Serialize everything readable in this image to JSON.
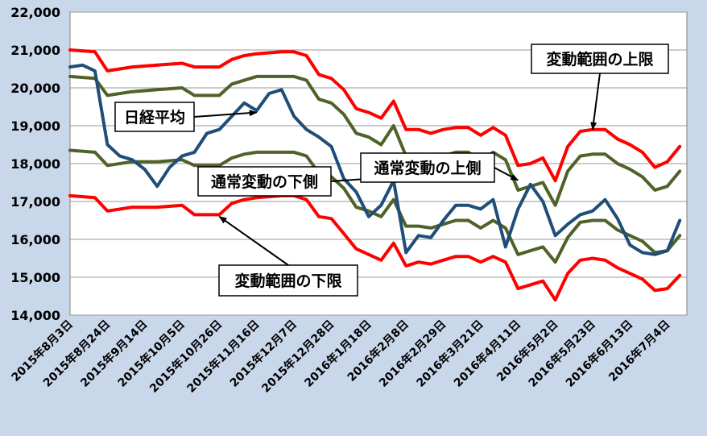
{
  "chart_data": {
    "type": "line",
    "title": "",
    "xlabel": "",
    "ylabel": "",
    "ylim": [
      14000,
      22000
    ],
    "y_ticks": [
      14000,
      15000,
      16000,
      17000,
      18000,
      19000,
      20000,
      21000,
      22000
    ],
    "y_tick_labels": [
      "14,000",
      "15,000",
      "16,000",
      "17,000",
      "18,000",
      "19,000",
      "20,000",
      "21,000",
      "22,000"
    ],
    "x_tick_labels": [
      "2015年8月3日",
      "2015年8月24日",
      "2015年9月14日",
      "2015年10月5日",
      "2015年10月26日",
      "2015年11月16日",
      "2015年12月7日",
      "2015年12月28日",
      "2016年1月18日",
      "2016年2月8日",
      "2016年2月29日",
      "2016年3月21日",
      "2016年4月11日",
      "2016年5月2日",
      "2016年5月23日",
      "2016年6月13日",
      "2016年7月4日"
    ],
    "grid": true,
    "plot_background": "#ffffff",
    "figure_background": "#c9d7ea",
    "series": [
      {
        "key": "upper_limit",
        "color": "#ff0000",
        "x": [
          "2015-08-03",
          "2015-08-17",
          "2015-08-24",
          "2015-09-07",
          "2015-09-21",
          "2015-10-05",
          "2015-10-12",
          "2015-10-26",
          "2015-11-02",
          "2015-11-09",
          "2015-11-16",
          "2015-11-30",
          "2015-12-07",
          "2015-12-14",
          "2015-12-21",
          "2015-12-28",
          "2016-01-04",
          "2016-01-11",
          "2016-01-18",
          "2016-01-25",
          "2016-02-01",
          "2016-02-08",
          "2016-02-15",
          "2016-02-22",
          "2016-02-29",
          "2016-03-07",
          "2016-03-14",
          "2016-03-21",
          "2016-03-28",
          "2016-04-04",
          "2016-04-11",
          "2016-04-18",
          "2016-04-25",
          "2016-05-02",
          "2016-05-09",
          "2016-05-16",
          "2016-05-23",
          "2016-05-30",
          "2016-06-06",
          "2016-06-13",
          "2016-06-20",
          "2016-06-27",
          "2016-07-04",
          "2016-07-11"
        ],
        "values": [
          21000,
          20950,
          20450,
          20550,
          20600,
          20650,
          20550,
          20550,
          20750,
          20850,
          20900,
          20950,
          20950,
          20850,
          20350,
          20250,
          19950,
          19450,
          19350,
          19200,
          19650,
          18900,
          18900,
          18800,
          18900,
          18950,
          18950,
          18750,
          18950,
          18750,
          17950,
          18000,
          18150,
          17550,
          18450,
          18850,
          18900,
          18900,
          18650,
          18500,
          18300,
          17900,
          18050,
          18450
        ]
      },
      {
        "key": "normal_upper",
        "color": "#4f6228",
        "x": [
          "2015-08-03",
          "2015-08-17",
          "2015-08-24",
          "2015-09-07",
          "2015-09-21",
          "2015-10-05",
          "2015-10-12",
          "2015-10-26",
          "2015-11-02",
          "2015-11-09",
          "2015-11-16",
          "2015-11-30",
          "2015-12-07",
          "2015-12-14",
          "2015-12-21",
          "2015-12-28",
          "2016-01-04",
          "2016-01-11",
          "2016-01-18",
          "2016-01-25",
          "2016-02-01",
          "2016-02-08",
          "2016-02-15",
          "2016-02-22",
          "2016-02-29",
          "2016-03-07",
          "2016-03-14",
          "2016-03-21",
          "2016-03-28",
          "2016-04-04",
          "2016-04-11",
          "2016-04-18",
          "2016-04-25",
          "2016-05-02",
          "2016-05-09",
          "2016-05-16",
          "2016-05-23",
          "2016-05-30",
          "2016-06-06",
          "2016-06-13",
          "2016-06-20",
          "2016-06-27",
          "2016-07-04",
          "2016-07-11"
        ],
        "values": [
          20300,
          20250,
          19800,
          19900,
          19950,
          20000,
          19800,
          19800,
          20100,
          20200,
          20300,
          20300,
          20300,
          20200,
          19700,
          19600,
          19300,
          18800,
          18700,
          18500,
          19000,
          18200,
          18200,
          18100,
          18200,
          18300,
          18300,
          18100,
          18300,
          18100,
          17300,
          17400,
          17500,
          16900,
          17800,
          18200,
          18250,
          18250,
          18000,
          17850,
          17650,
          17300,
          17400,
          17800
        ]
      },
      {
        "key": "normal_lower",
        "color": "#4f6228",
        "x": [
          "2015-08-03",
          "2015-08-17",
          "2015-08-24",
          "2015-09-07",
          "2015-09-21",
          "2015-10-05",
          "2015-10-12",
          "2015-10-26",
          "2015-11-02",
          "2015-11-09",
          "2015-11-16",
          "2015-11-30",
          "2015-12-07",
          "2015-12-14",
          "2015-12-21",
          "2015-12-28",
          "2016-01-04",
          "2016-01-11",
          "2016-01-18",
          "2016-01-25",
          "2016-02-01",
          "2016-02-08",
          "2016-02-15",
          "2016-02-22",
          "2016-02-29",
          "2016-03-07",
          "2016-03-14",
          "2016-03-21",
          "2016-03-28",
          "2016-04-04",
          "2016-04-11",
          "2016-04-18",
          "2016-04-25",
          "2016-05-02",
          "2016-05-09",
          "2016-05-16",
          "2016-05-23",
          "2016-05-30",
          "2016-06-06",
          "2016-06-13",
          "2016-06-20",
          "2016-06-27",
          "2016-07-04",
          "2016-07-11"
        ],
        "values": [
          18350,
          18300,
          17950,
          18050,
          18050,
          18100,
          17950,
          17950,
          18150,
          18250,
          18300,
          18300,
          18300,
          18200,
          17750,
          17650,
          17350,
          16850,
          16750,
          16600,
          17050,
          16350,
          16350,
          16300,
          16400,
          16500,
          16500,
          16300,
          16500,
          16300,
          15600,
          15700,
          15800,
          15400,
          16050,
          16450,
          16500,
          16500,
          16250,
          16100,
          15950,
          15650,
          15700,
          16100
        ]
      },
      {
        "key": "lower_limit",
        "color": "#ff0000",
        "x": [
          "2015-08-03",
          "2015-08-17",
          "2015-08-24",
          "2015-09-07",
          "2015-09-21",
          "2015-10-05",
          "2015-10-12",
          "2015-10-26",
          "2015-11-02",
          "2015-11-09",
          "2015-11-16",
          "2015-11-30",
          "2015-12-07",
          "2015-12-14",
          "2015-12-21",
          "2015-12-28",
          "2016-01-04",
          "2016-01-11",
          "2016-01-18",
          "2016-01-25",
          "2016-02-01",
          "2016-02-08",
          "2016-02-15",
          "2016-02-22",
          "2016-02-29",
          "2016-03-07",
          "2016-03-14",
          "2016-03-21",
          "2016-03-28",
          "2016-04-04",
          "2016-04-11",
          "2016-04-18",
          "2016-04-25",
          "2016-05-02",
          "2016-05-09",
          "2016-05-16",
          "2016-05-23",
          "2016-05-30",
          "2016-06-06",
          "2016-06-13",
          "2016-06-20",
          "2016-06-27",
          "2016-07-04",
          "2016-07-11"
        ],
        "values": [
          17150,
          17100,
          16750,
          16850,
          16850,
          16900,
          16650,
          16650,
          16950,
          17050,
          17100,
          17150,
          17150,
          17050,
          16600,
          16550,
          16150,
          15750,
          15600,
          15450,
          15900,
          15300,
          15400,
          15350,
          15450,
          15550,
          15550,
          15400,
          15550,
          15400,
          14700,
          14800,
          14900,
          14400,
          15100,
          15450,
          15500,
          15450,
          15250,
          15100,
          14950,
          14650,
          14700,
          15050
        ]
      },
      {
        "key": "nikkei",
        "name": "日経平均",
        "color": "#1f4e79",
        "x": [
          "2015-08-03",
          "2015-08-10",
          "2015-08-17",
          "2015-08-24",
          "2015-08-31",
          "2015-09-07",
          "2015-09-14",
          "2015-09-21",
          "2015-09-28",
          "2015-10-05",
          "2015-10-12",
          "2015-10-19",
          "2015-10-26",
          "2015-11-02",
          "2015-11-09",
          "2015-11-16",
          "2015-11-23",
          "2015-11-30",
          "2015-12-07",
          "2015-12-14",
          "2015-12-21",
          "2015-12-28",
          "2016-01-04",
          "2016-01-11",
          "2016-01-18",
          "2016-01-25",
          "2016-02-01",
          "2016-02-08",
          "2016-02-15",
          "2016-02-22",
          "2016-02-29",
          "2016-03-07",
          "2016-03-14",
          "2016-03-21",
          "2016-03-28",
          "2016-04-04",
          "2016-04-11",
          "2016-04-18",
          "2016-04-25",
          "2016-05-02",
          "2016-05-09",
          "2016-05-16",
          "2016-05-23",
          "2016-05-30",
          "2016-06-06",
          "2016-06-13",
          "2016-06-20",
          "2016-06-27",
          "2016-07-04",
          "2016-07-11"
        ],
        "values": [
          20550,
          20600,
          20450,
          18500,
          18200,
          18100,
          17850,
          17400,
          17900,
          18200,
          18300,
          18800,
          18900,
          19250,
          19600,
          19400,
          19850,
          19950,
          19250,
          18900,
          18700,
          18450,
          17600,
          17250,
          16600,
          16900,
          17550,
          15650,
          16100,
          16050,
          16500,
          16900,
          16900,
          16800,
          17050,
          15800,
          16800,
          17450,
          17000,
          16100,
          16400,
          16650,
          16750,
          17050,
          16550,
          15850,
          15650,
          15600,
          15700,
          16500
        ]
      }
    ],
    "annotations": [
      {
        "key": "nikkei_label",
        "text": "日経平均",
        "target_x": "2015-11-16",
        "target_y": 19350
      },
      {
        "key": "normal_lower_label",
        "text": "通常変動の下側",
        "target_x": "2016-01-18",
        "target_y": 17600
      },
      {
        "key": "normal_upper_label",
        "text": "通常変動の上側",
        "target_x": "2016-04-11",
        "target_y": 17560
      },
      {
        "key": "limit_upper_label",
        "text": "変動範囲の上限",
        "target_x": "2016-05-23",
        "target_y": 18900
      },
      {
        "key": "limit_lower_label",
        "text": "変動範囲の下限",
        "target_x": "2015-10-26",
        "target_y": 16600
      }
    ]
  }
}
